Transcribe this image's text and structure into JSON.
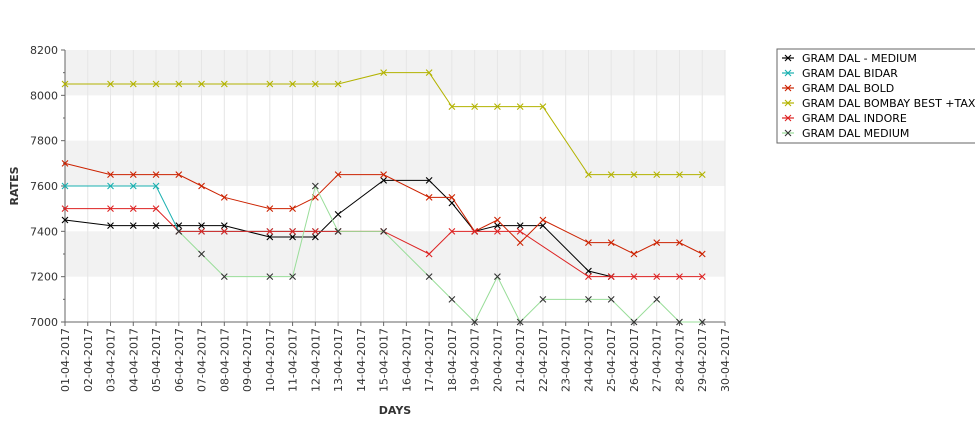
{
  "chart_data": {
    "type": "line",
    "xlabel": "DAYS",
    "ylabel": "RATES",
    "ylim": [
      7000,
      8200
    ],
    "yticks": [
      7000,
      7200,
      7400,
      7600,
      7800,
      8000,
      8200
    ],
    "grid": "alternating horizontal bands",
    "legend_position": "right",
    "categories": [
      "01-04-2017",
      "02-04-2017",
      "03-04-2017",
      "04-04-2017",
      "05-04-2017",
      "06-04-2017",
      "07-04-2017",
      "08-04-2017",
      "09-04-2017",
      "10-04-2017",
      "11-04-2017",
      "12-04-2017",
      "13-04-2017",
      "14-04-2017",
      "15-04-2017",
      "16-04-2017",
      "17-04-2017",
      "18-04-2017",
      "19-04-2017",
      "20-04-2017",
      "21-04-2017",
      "22-04-2017",
      "23-04-2017",
      "24-04-2017",
      "25-04-2017",
      "26-04-2017",
      "27-04-2017",
      "28-04-2017",
      "29-04-2017",
      "30-04-2017"
    ],
    "series": [
      {
        "name": "GRAM DAL - MEDIUM",
        "color": "#000000",
        "values": [
          7450,
          null,
          7425,
          7425,
          7425,
          7425,
          7425,
          7425,
          null,
          7375,
          7375,
          7375,
          7475,
          null,
          7625,
          null,
          7625,
          7525,
          7400,
          7425,
          7425,
          7425,
          null,
          7225,
          7200,
          null,
          null,
          null,
          null,
          null
        ]
      },
      {
        "name": "GRAM DAL BIDAR",
        "color": "#1ab0b0",
        "values": [
          7600,
          null,
          7600,
          7600,
          7600,
          7400,
          7400,
          7400,
          null,
          7400,
          7400,
          7400,
          7400,
          null,
          null,
          null,
          null,
          null,
          null,
          null,
          null,
          null,
          null,
          null,
          null,
          null,
          null,
          null,
          null,
          null
        ]
      },
      {
        "name": "GRAM DAL BOLD",
        "color": "#cc2200",
        "values": [
          7700,
          null,
          7650,
          7650,
          7650,
          7650,
          7600,
          7550,
          null,
          7500,
          7500,
          7550,
          7650,
          null,
          7650,
          null,
          7550,
          7550,
          7400,
          7450,
          7350,
          7450,
          null,
          7350,
          7350,
          7300,
          7350,
          7350,
          7300,
          null
        ]
      },
      {
        "name": "GRAM DAL BOMBAY BEST +TAX",
        "color": "#b3b300",
        "values": [
          8050,
          null,
          8050,
          8050,
          8050,
          8050,
          8050,
          8050,
          null,
          8050,
          8050,
          8050,
          8050,
          null,
          8100,
          null,
          8100,
          7950,
          7950,
          7950,
          7950,
          7950,
          null,
          7650,
          7650,
          7650,
          7650,
          7650,
          7650,
          null
        ]
      },
      {
        "name": "GRAM DAL INDORE",
        "color": "#dd2222",
        "values": [
          7500,
          null,
          7500,
          7500,
          7500,
          7400,
          7400,
          7400,
          null,
          7400,
          7400,
          7400,
          7400,
          null,
          7400,
          null,
          7300,
          7400,
          7400,
          7400,
          7400,
          null,
          null,
          7200,
          7200,
          7200,
          7200,
          7200,
          7200,
          null
        ]
      },
      {
        "name": "GRAM DAL MEDIUM",
        "color": "#99dd99",
        "marker_color": "#333333",
        "values": [
          null,
          null,
          null,
          null,
          null,
          7400,
          7300,
          7200,
          null,
          7200,
          7200,
          7600,
          7400,
          null,
          7400,
          null,
          7200,
          7100,
          7000,
          7200,
          7000,
          7100,
          null,
          7100,
          7100,
          7000,
          7100,
          7000,
          7000,
          null
        ]
      }
    ]
  }
}
